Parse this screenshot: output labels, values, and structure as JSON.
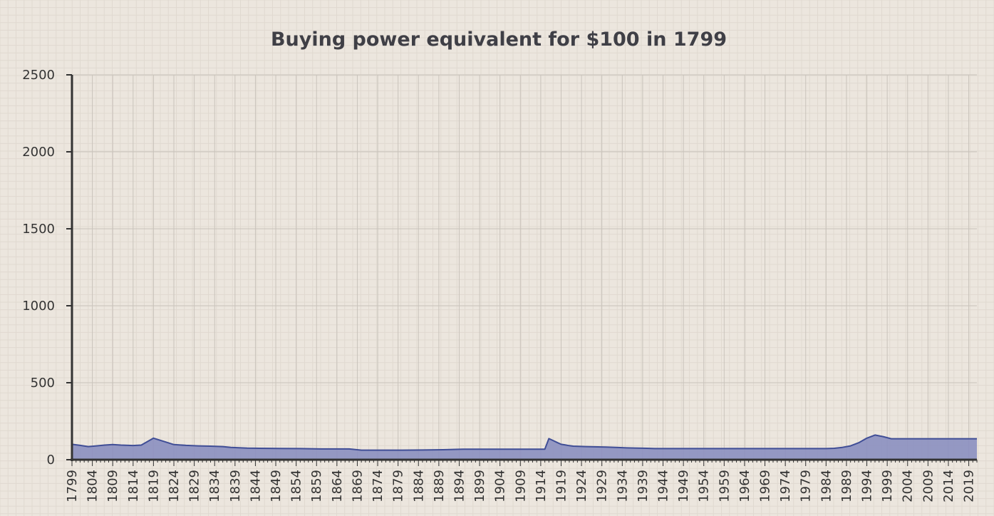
{
  "chart_data": {
    "type": "area",
    "title": "Buying power equivalent for $100 in 1799",
    "xlabel": "",
    "ylabel": "",
    "ylim": [
      0,
      2500
    ],
    "xlim": [
      1799,
      2021
    ],
    "yticks": [
      "0",
      "500",
      "1000",
      "1500",
      "2000",
      "2500"
    ],
    "xticks": [
      "1799",
      "1804",
      "1809",
      "1814",
      "1819",
      "1824",
      "1829",
      "1834",
      "1839",
      "1844",
      "1849",
      "1854",
      "1859",
      "1864",
      "1869",
      "1874",
      "1879",
      "1884",
      "1889",
      "1894",
      "1899",
      "1904",
      "1909",
      "1914",
      "1919",
      "1924",
      "1929",
      "1934",
      "1939",
      "1944",
      "1949",
      "1954",
      "1959",
      "1964",
      "1969",
      "1974",
      "1979",
      "1984",
      "1989",
      "1994",
      "1999",
      "2004",
      "2009",
      "2014",
      "2019"
    ],
    "grid": true,
    "colors": {
      "fill": "#8b8fc0",
      "line": "#404e96",
      "axis": "#333333",
      "grid_major": "#c9c3bb",
      "grid_minor": "#e0d9d0"
    },
    "x": [
      1799,
      1801,
      1803,
      1805,
      1807,
      1809,
      1811,
      1814,
      1816,
      1819,
      1822,
      1824,
      1827,
      1830,
      1833,
      1836,
      1838,
      1840,
      1842,
      1845,
      1850,
      1855,
      1860,
      1865,
      1867,
      1870,
      1875,
      1880,
      1885,
      1890,
      1895,
      1900,
      1905,
      1910,
      1915,
      1916,
      1917,
      1918,
      1919,
      1920,
      1921,
      1922,
      1925,
      1930,
      1933,
      1935,
      1938,
      1940,
      1942,
      1943,
      1945,
      1946,
      1947,
      1948,
      1950,
      1951,
      1952,
      1955,
      1958,
      1960,
      1962,
      1965,
      1968,
      1970,
      1972,
      1974,
      1976,
      1978,
      1980,
      1982,
      1984,
      1986,
      1988,
      1990,
      1992,
      1994,
      1996,
      1998,
      2000,
      2002,
      2004,
      2006,
      2008,
      2010,
      2011,
      2013,
      2015,
      2017,
      2019,
      2021
    ],
    "y": [
      100,
      93,
      85,
      90,
      95,
      98,
      95,
      92,
      95,
      140,
      115,
      98,
      93,
      90,
      88,
      85,
      80,
      78,
      75,
      74,
      73,
      72,
      70,
      70,
      70,
      62,
      62,
      62,
      63,
      65,
      68,
      68,
      68,
      68,
      68,
      137,
      125,
      112,
      100,
      96,
      91,
      88,
      85,
      82,
      79,
      77,
      75,
      74,
      72,
      72,
      72,
      72,
      72,
      72,
      72,
      72,
      72,
      72,
      72,
      72,
      72,
      72,
      72,
      72,
      72,
      72,
      72,
      72,
      72,
      72,
      72,
      74,
      80,
      90,
      110,
      140,
      160,
      150,
      136,
      136,
      136,
      136,
      136,
      136,
      136,
      136,
      136,
      136,
      136,
      136
    ]
  }
}
